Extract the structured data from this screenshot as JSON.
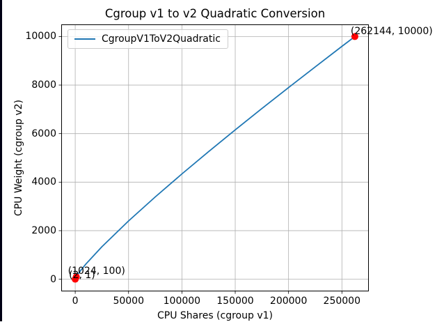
{
  "window": {
    "background": "#ffffff",
    "edge_color": "#000014"
  },
  "chart_data": {
    "type": "line",
    "title": "Cgroup v1 to v2 Quadratic Conversion",
    "xlabel": "CPU Shares (cgroup v1)",
    "ylabel": "CPU Weight (cgroup v2)",
    "grid": true,
    "grid_color": "#b0b0b0",
    "spine_color": "#000000",
    "xlim": [
      -13107,
      275251
    ],
    "ylim": [
      -500,
      10500
    ],
    "x_ticks": {
      "values": [
        0,
        50000,
        100000,
        150000,
        200000,
        250000
      ],
      "labels": [
        "0",
        "50000",
        "100000",
        "150000",
        "200000",
        "250000"
      ]
    },
    "y_ticks": {
      "values": [
        0,
        2000,
        4000,
        6000,
        8000,
        10000
      ],
      "labels": [
        "0",
        "2000",
        "4000",
        "6000",
        "8000",
        "10000"
      ]
    },
    "legend": {
      "position": "upper left",
      "entries": [
        {
          "label": "CgroupV1ToV2Quadratic",
          "color": "#1f77b4"
        }
      ]
    },
    "series": [
      {
        "name": "CgroupV1ToV2Quadratic",
        "color": "#1f77b4",
        "x": [
          2,
          1024,
          2048,
          5000,
          10000,
          25000,
          50000,
          75000,
          100000,
          125000,
          150000,
          175000,
          200000,
          225000,
          250000,
          262144
        ],
        "y": [
          1,
          100,
          173,
          355,
          626,
          1339,
          2402,
          3391,
          4339,
          5257,
          6155,
          7032,
          7897,
          8750,
          9594,
          10000
        ]
      }
    ],
    "annotated_points": [
      {
        "x": 2,
        "y": 1,
        "label": "(2, 1)"
      },
      {
        "x": 1024,
        "y": 100,
        "label": "(1024, 100)"
      },
      {
        "x": 262144,
        "y": 10000,
        "label": "(262144, 10000)"
      }
    ],
    "point_color": "#ff0000"
  }
}
